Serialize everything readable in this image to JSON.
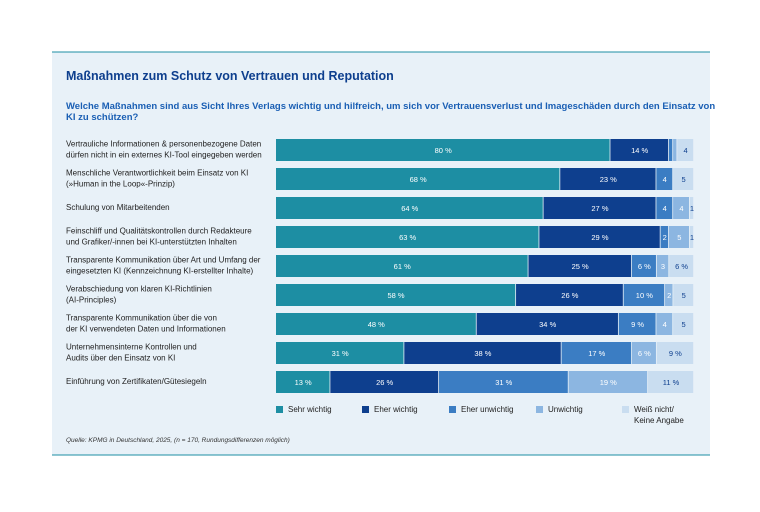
{
  "chart_data": {
    "type": "stacked-bar-horizontal",
    "title": "Maßnahmen zum Schutz von Vertrauen und Reputation",
    "subtitle": "Welche Maßnahmen sind aus Sicht Ihres Verlags wichtig und hilfreich, um sich vor Vertrauensverlust und Imageschäden durch den Einsatz von\nKI zu schützen?",
    "categories": [
      "Vertrauliche Informationen & personenbezogene Daten\ndürfen nicht in ein externes KI-Tool eingegeben werden",
      "Menschliche Verantwortlichkeit beim Einsatz von KI\n(»Human in the Loop«-Prinzip)",
      "Schulung von Mitarbeitenden",
      "Feinschliff und Qualitätskontrollen durch Redakteure\nund Grafiker/-innen bei KI-unterstützten Inhalten",
      "Transparente Kommunikation über Art und Umfang der\neingesetzten KI (Kennzeichnung KI-erstellter Inhalte)",
      "Verabschiedung von klaren KI-Richtlinien\n(AI-Principles)",
      "Transparente Kommunikation über die von\nder KI verwendeten Daten und Informationen",
      "Unternehmensinterne Kontrollen und\nAudits über den Einsatz von KI",
      "Einführung von Zertifikaten/Gütesiegeln"
    ],
    "series": [
      {
        "name": "Sehr wichtig",
        "color": "#1d8ea3",
        "values": [
          80,
          68,
          64,
          63,
          61,
          58,
          48,
          31,
          13
        ],
        "value_labels": [
          "80 %",
          "68 %",
          "64 %",
          "63 %",
          "61 %",
          "58 %",
          "48 %",
          "31 %",
          "13 %"
        ]
      },
      {
        "name": "Eher wichtig",
        "color": "#0e3f8e",
        "values": [
          14,
          23,
          27,
          29,
          25,
          26,
          34,
          38,
          26
        ],
        "value_labels": [
          "14 %",
          "23 %",
          "27 %",
          "29 %",
          "25 %",
          "26 %",
          "34 %",
          "38 %",
          "26 %"
        ]
      },
      {
        "name": "Eher unwichtig",
        "color": "#3b7dc3",
        "values": [
          1,
          4,
          4,
          2,
          6,
          10,
          9,
          17,
          31
        ],
        "value_labels": [
          null,
          "4",
          "4",
          "2",
          "6 %",
          "10 %",
          "9 %",
          "17 %",
          "31 %"
        ]
      },
      {
        "name": "Unwichtig",
        "color": "#8cb6e1",
        "values": [
          1,
          0,
          4,
          5,
          3,
          2,
          4,
          6,
          19
        ],
        "value_labels": [
          null,
          null,
          "4",
          "5",
          "3",
          "2",
          "4",
          "6 %",
          "19 %"
        ]
      },
      {
        "name": "Weiß nicht/\nKeine Angabe",
        "color": "#c9ddf0",
        "values": [
          4,
          5,
          1,
          1,
          6,
          5,
          5,
          9,
          11
        ],
        "value_labels": [
          "4",
          "5",
          "1",
          "1",
          "6 %",
          "5",
          "5",
          "9 %",
          "11 %"
        ]
      }
    ],
    "source": "Quelle: KPMG in Deutschland, 2025, (n = 170, Rundungsdifferenzen möglich)"
  }
}
